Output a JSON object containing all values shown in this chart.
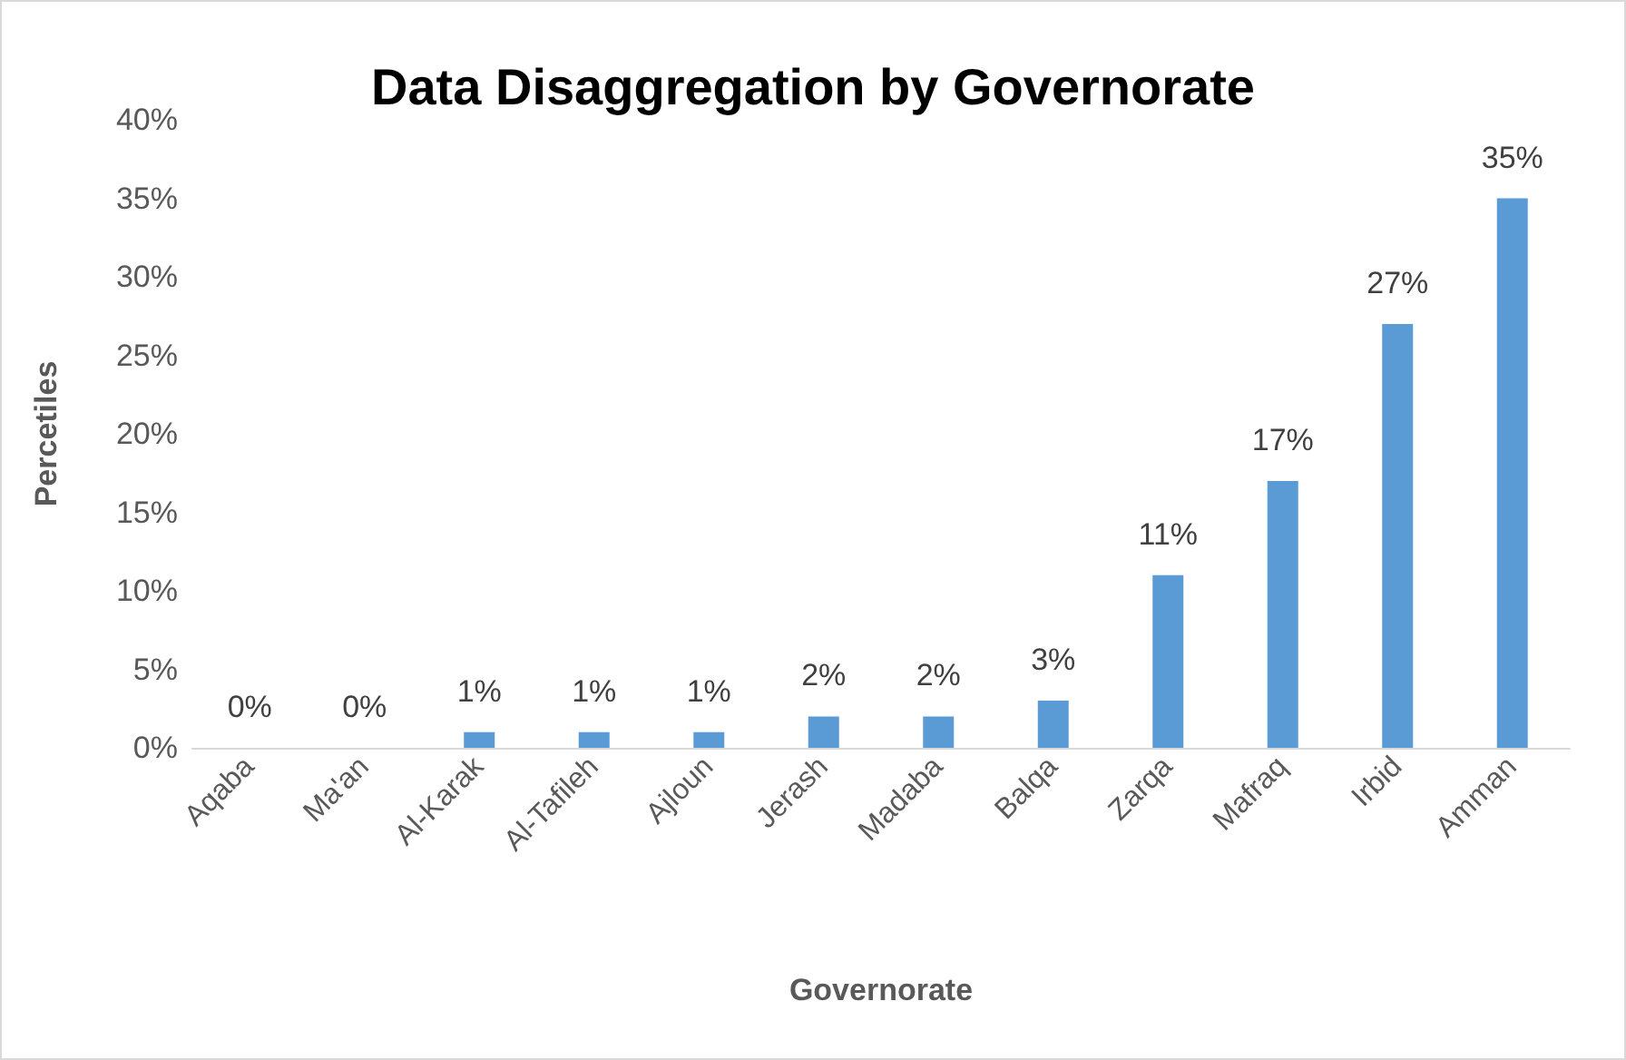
{
  "chart_data": {
    "type": "bar",
    "title": "Data Disaggregation by Governorate",
    "xlabel": "Governorate",
    "ylabel": "Percetiles",
    "categories": [
      "Aqaba",
      "Ma'an",
      "Al-Karak",
      "Al-Tafileh",
      "Ajloun",
      "Jerash",
      "Madaba",
      "Balqa",
      "Zarqa",
      "Mafraq",
      "Irbid",
      "Amman"
    ],
    "values": [
      0,
      0,
      1,
      1,
      1,
      2,
      2,
      3,
      11,
      17,
      27,
      35
    ],
    "value_labels": [
      "0%",
      "0%",
      "1%",
      "1%",
      "1%",
      "2%",
      "2%",
      "3%",
      "11%",
      "17%",
      "27%",
      "35%"
    ],
    "color": "#5b9bd5",
    "ylim": [
      0,
      40
    ],
    "yticks": [
      {
        "value": 0,
        "label": "0%"
      },
      {
        "value": 5,
        "label": "5%"
      },
      {
        "value": 10,
        "label": "10%"
      },
      {
        "value": 15,
        "label": "15%"
      },
      {
        "value": 20,
        "label": "20%"
      },
      {
        "value": 25,
        "label": "25%"
      },
      {
        "value": 30,
        "label": "30%"
      },
      {
        "value": 35,
        "label": "35%"
      },
      {
        "value": 40,
        "label": "40%"
      }
    ],
    "grid": false
  }
}
